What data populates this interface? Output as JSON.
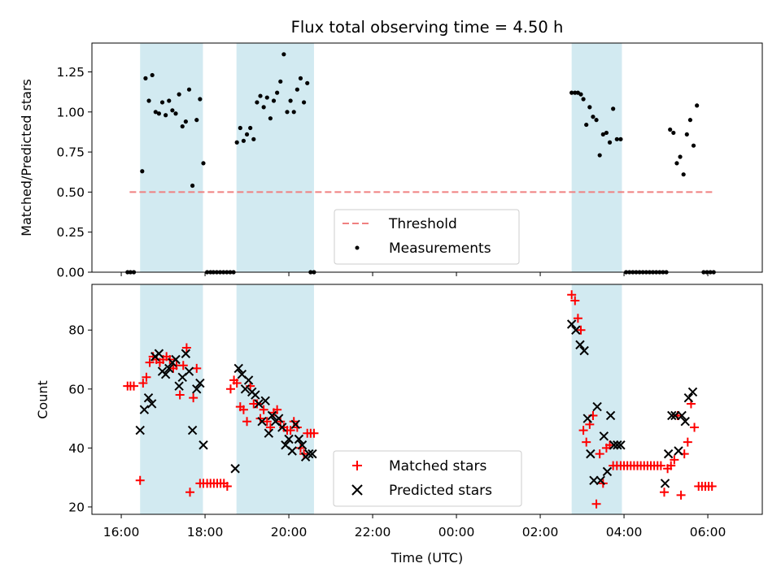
{
  "chart_data": [
    {
      "type": "scatter",
      "title": "Flux total observing time = 4.50 h",
      "xlabel": "",
      "ylabel": "Matched/Predicted stars",
      "ylim": [
        0.0,
        1.43
      ],
      "yticks": [
        0.0,
        0.25,
        0.5,
        0.75,
        1.0,
        1.25
      ],
      "ytick_labels": [
        "0.00",
        "0.25",
        "0.50",
        "0.75",
        "1.00",
        "1.25"
      ],
      "x_unit": "hours since 16:00 UTC",
      "threshold": {
        "name": "Threshold",
        "y": 0.5,
        "x_start": 0.2,
        "x_end": 14.15,
        "color": "#f08080"
      },
      "series": [
        {
          "name": "Measurements",
          "color": "#000000",
          "x": [
            0.15,
            0.22,
            0.3,
            0.5,
            0.58,
            0.66,
            0.74,
            0.82,
            0.9,
            0.98,
            1.06,
            1.14,
            1.22,
            1.3,
            1.38,
            1.46,
            1.54,
            1.62,
            1.7,
            1.8,
            1.88,
            1.96,
            2.05,
            2.13,
            2.2,
            2.28,
            2.36,
            2.44,
            2.52,
            2.6,
            2.68,
            2.76,
            2.84,
            2.92,
            3.0,
            3.08,
            3.16,
            3.24,
            3.32,
            3.4,
            3.48,
            3.56,
            3.64,
            3.72,
            3.8,
            3.88,
            3.96,
            4.04,
            4.12,
            4.2,
            4.28,
            4.36,
            4.44,
            4.52,
            4.6,
            10.75,
            10.83,
            10.9,
            10.97,
            11.03,
            11.1,
            11.18,
            11.26,
            11.34,
            11.42,
            11.5,
            11.58,
            11.66,
            11.74,
            11.83,
            11.92,
            12.05,
            12.13,
            12.21,
            12.29,
            12.37,
            12.45,
            12.53,
            12.61,
            12.69,
            12.77,
            12.85,
            12.93,
            13.01,
            13.1,
            13.18,
            13.26,
            13.34,
            13.42,
            13.5,
            13.58,
            13.66,
            13.74,
            13.9,
            13.98,
            14.06,
            14.14
          ],
          "y": [
            0.0,
            0.0,
            0.0,
            0.63,
            1.21,
            1.07,
            1.23,
            1.0,
            0.99,
            1.06,
            0.98,
            1.07,
            1.01,
            0.99,
            1.11,
            0.91,
            0.94,
            1.14,
            0.54,
            0.95,
            1.08,
            0.68,
            0.0,
            0.0,
            0.0,
            0.0,
            0.0,
            0.0,
            0.0,
            0.0,
            0.0,
            0.81,
            0.9,
            0.82,
            0.86,
            0.9,
            0.83,
            1.06,
            1.1,
            1.03,
            1.09,
            0.96,
            1.07,
            1.12,
            1.19,
            1.36,
            1.0,
            1.07,
            1.0,
            1.14,
            1.21,
            1.06,
            1.18,
            0.0,
            0.0,
            1.12,
            1.12,
            1.12,
            1.11,
            1.08,
            0.92,
            1.03,
            0.97,
            0.95,
            0.73,
            0.86,
            0.87,
            0.81,
            1.02,
            0.83,
            0.83,
            0.0,
            0.0,
            0.0,
            0.0,
            0.0,
            0.0,
            0.0,
            0.0,
            0.0,
            0.0,
            0.0,
            0.0,
            0.0,
            0.89,
            0.87,
            0.68,
            0.72,
            0.61,
            0.86,
            0.95,
            0.79,
            1.04,
            0.0,
            0.0,
            0.0,
            0.0
          ]
        }
      ],
      "legend": {
        "placement": "lower-center",
        "entries": [
          "Threshold",
          "Measurements"
        ]
      }
    },
    {
      "type": "scatter",
      "title": "",
      "xlabel": "Time (UTC)",
      "ylabel": "Count",
      "ylim": [
        17.5,
        95.5
      ],
      "xlim": [
        -0.7,
        15.3
      ],
      "yticks": [
        20,
        40,
        60,
        80
      ],
      "ytick_labels": [
        "20",
        "40",
        "60",
        "80"
      ],
      "xticks": [
        0,
        2,
        4,
        6,
        8,
        10,
        12,
        14
      ],
      "xtick_labels": [
        "16:00",
        "18:00",
        "20:00",
        "22:00",
        "00:00",
        "02:00",
        "04:00",
        "06:00"
      ],
      "shaded_intervals": [
        [
          0.45,
          1.95
        ],
        [
          2.75,
          4.6
        ],
        [
          10.75,
          11.95
        ]
      ],
      "shade_color": "#add8e6",
      "series": [
        {
          "name": "Matched stars",
          "color": "#ff0000",
          "x": [
            0.15,
            0.22,
            0.3,
            0.45,
            0.52,
            0.6,
            0.68,
            0.76,
            0.84,
            0.92,
            1.0,
            1.08,
            1.16,
            1.24,
            1.32,
            1.4,
            1.48,
            1.56,
            1.64,
            1.72,
            1.8,
            1.88,
            1.96,
            2.05,
            2.13,
            2.21,
            2.29,
            2.37,
            2.45,
            2.53,
            2.61,
            2.69,
            2.76,
            2.84,
            2.92,
            3.0,
            3.08,
            3.16,
            3.24,
            3.32,
            3.4,
            3.48,
            3.56,
            3.64,
            3.72,
            3.8,
            3.88,
            3.96,
            4.04,
            4.12,
            4.2,
            4.28,
            4.36,
            4.44,
            4.52,
            4.6,
            10.75,
            10.83,
            10.9,
            10.97,
            11.03,
            11.1,
            11.18,
            11.26,
            11.34,
            11.42,
            11.5,
            11.58,
            11.66,
            11.74,
            11.83,
            11.92,
            12.0,
            12.08,
            12.16,
            12.24,
            12.32,
            12.4,
            12.48,
            12.56,
            12.64,
            12.72,
            12.8,
            12.88,
            12.96,
            13.04,
            13.12,
            13.2,
            13.28,
            13.36,
            13.44,
            13.52,
            13.6,
            13.68,
            13.78,
            13.86,
            13.94,
            14.02,
            14.1
          ],
          "y": [
            61,
            61,
            61,
            29,
            62,
            64,
            69,
            71,
            70,
            69,
            70,
            71,
            70,
            67,
            68,
            58,
            68,
            74,
            25,
            57,
            67,
            28,
            28,
            28,
            28,
            28,
            28,
            28,
            28,
            27,
            60,
            63,
            62,
            54,
            53,
            49,
            61,
            55,
            55,
            50,
            53,
            49,
            47,
            52,
            53,
            49,
            47,
            46,
            46,
            49,
            47,
            40,
            38,
            45,
            45,
            45,
            92,
            90,
            84,
            80,
            46,
            42,
            48,
            51,
            21,
            38,
            28,
            40,
            41,
            34,
            34,
            34,
            34,
            34,
            34,
            34,
            34,
            34,
            34,
            34,
            34,
            34,
            34,
            34,
            25,
            33,
            34,
            36,
            51,
            24,
            38,
            42,
            55,
            47,
            27,
            27,
            27,
            27,
            27
          ]
        },
        {
          "name": "Predicted stars",
          "color": "#000000",
          "x": [
            0.45,
            0.55,
            0.65,
            0.73,
            0.81,
            0.9,
            0.98,
            1.06,
            1.14,
            1.22,
            1.3,
            1.38,
            1.46,
            1.54,
            1.62,
            1.7,
            1.8,
            1.88,
            1.96,
            2.72,
            2.8,
            2.88,
            2.96,
            3.04,
            3.12,
            3.2,
            3.28,
            3.36,
            3.44,
            3.52,
            3.6,
            3.68,
            3.76,
            3.84,
            3.92,
            4.0,
            4.08,
            4.16,
            4.24,
            4.32,
            4.4,
            4.48,
            4.56,
            10.75,
            10.85,
            10.95,
            11.05,
            11.13,
            11.2,
            11.28,
            11.36,
            11.44,
            11.52,
            11.6,
            11.68,
            11.76,
            11.84,
            11.92,
            12.98,
            13.06,
            13.14,
            13.22,
            13.3,
            13.38,
            13.46,
            13.54,
            13.64
          ],
          "y": [
            46,
            53,
            57,
            55,
            71,
            72,
            66,
            65,
            67,
            69,
            70,
            61,
            64,
            72,
            66,
            46,
            60,
            62,
            41,
            33,
            67,
            65,
            60,
            63,
            59,
            58,
            55,
            49,
            56,
            45,
            51,
            49,
            50,
            47,
            41,
            43,
            39,
            48,
            43,
            41,
            37,
            38,
            38,
            82,
            80,
            75,
            73,
            50,
            38,
            29,
            54,
            29,
            44,
            32,
            51,
            41,
            41,
            41,
            28,
            38,
            51,
            51,
            39,
            51,
            49,
            57,
            59
          ]
        }
      ],
      "legend": {
        "placement": "lower-center",
        "entries": [
          "Matched stars",
          "Predicted stars"
        ]
      }
    }
  ]
}
